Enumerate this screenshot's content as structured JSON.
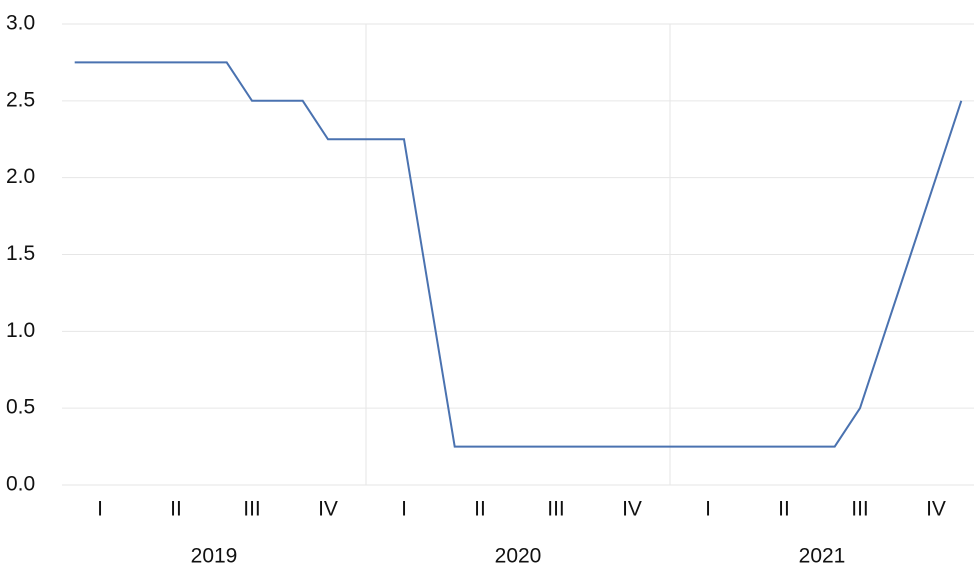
{
  "chart_data": {
    "type": "line",
    "x": [
      0.5,
      1.5,
      2.5,
      3.5,
      4.5,
      5.5,
      6.5,
      7.5,
      8.5,
      9.5,
      10.5,
      11.5,
      12.5,
      13.5,
      14.5,
      15.5,
      16.5,
      17.5,
      18.5,
      19.5,
      20.5,
      21.5,
      22.5,
      23.5,
      24.5,
      25.5,
      26.5,
      27.5,
      28.5,
      29.5,
      30.5,
      31.5,
      32.5,
      33.5,
      34.5,
      35.5
    ],
    "series": [
      {
        "color": "#4a72b0",
        "values": [
          2.75,
          2.75,
          2.75,
          2.75,
          2.75,
          2.75,
          2.75,
          2.5,
          2.5,
          2.5,
          2.25,
          2.25,
          2.25,
          2.25,
          1.25,
          0.25,
          0.25,
          0.25,
          0.25,
          0.25,
          0.25,
          0.25,
          0.25,
          0.25,
          0.25,
          0.25,
          0.25,
          0.25,
          0.25,
          0.25,
          0.25,
          0.5,
          1.0,
          1.5,
          2.0,
          2.5
        ]
      }
    ],
    "xlim": [
      0,
      36
    ],
    "xticks": [
      {
        "value": 1.5,
        "label": "I"
      },
      {
        "value": 4.5,
        "label": "II"
      },
      {
        "value": 7.5,
        "label": "III"
      },
      {
        "value": 10.5,
        "label": "IV"
      },
      {
        "value": 13.5,
        "label": "I"
      },
      {
        "value": 16.5,
        "label": "II"
      },
      {
        "value": 19.5,
        "label": "III"
      },
      {
        "value": 22.5,
        "label": "IV"
      },
      {
        "value": 25.5,
        "label": "I"
      },
      {
        "value": 28.5,
        "label": "II"
      },
      {
        "value": 31.5,
        "label": "III"
      },
      {
        "value": 34.5,
        "label": "IV"
      }
    ],
    "x_groups": [
      "2019",
      "2020",
      "2021"
    ],
    "ylim": [
      0,
      3
    ],
    "yticks": [
      {
        "value": 0,
        "label": "0.0"
      },
      {
        "value": 0.5,
        "label": "0.5"
      },
      {
        "value": 1,
        "label": "1.0"
      },
      {
        "value": 1.5,
        "label": "1.5"
      },
      {
        "value": 2,
        "label": "2.0"
      },
      {
        "value": 2.5,
        "label": "2.5"
      },
      {
        "value": 3,
        "label": "3.0"
      }
    ],
    "grid": true
  }
}
